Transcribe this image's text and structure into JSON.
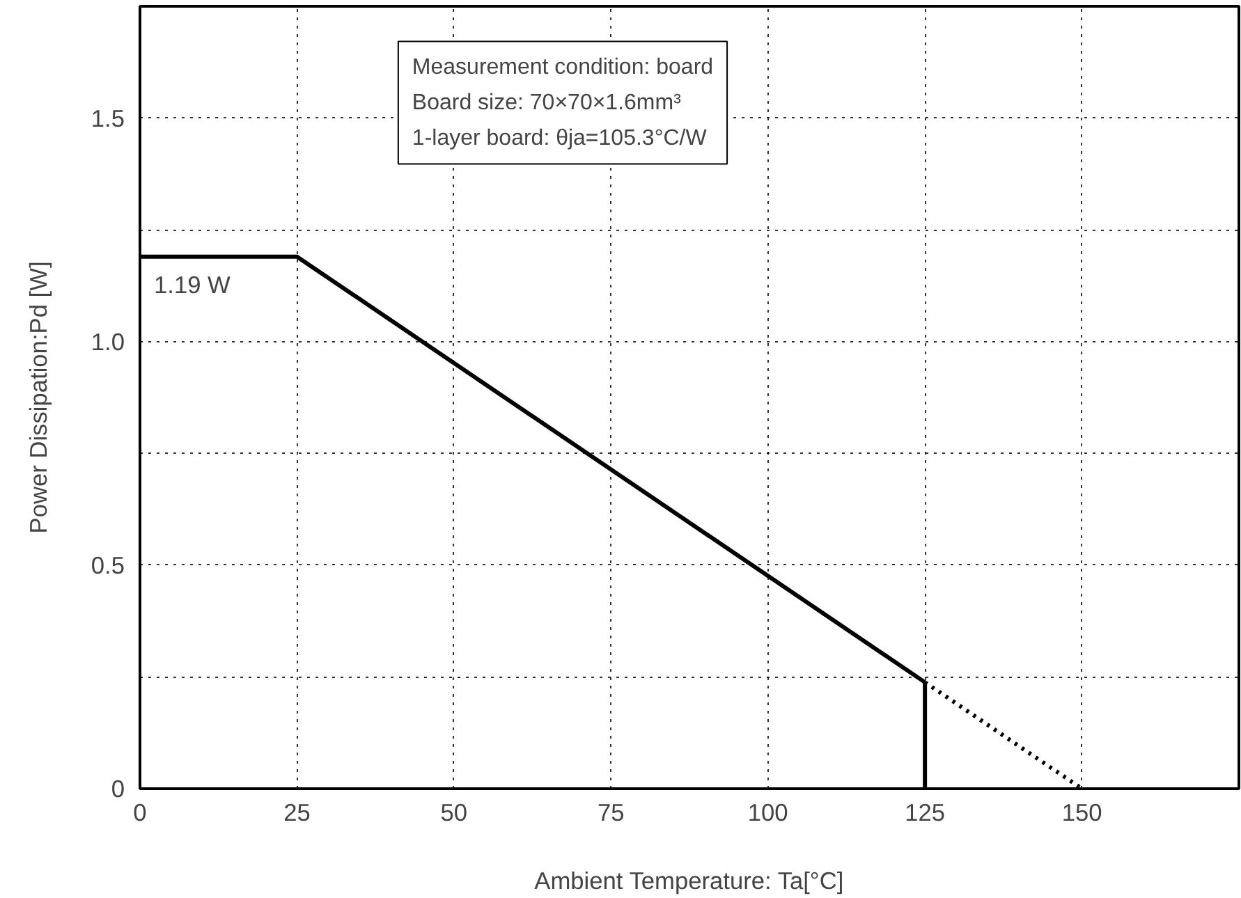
{
  "chart_data": {
    "type": "line",
    "xlabel": "Ambient Temperature: Ta[°C]",
    "ylabel": "Power Dissipation:Pd [W]",
    "xlim": [
      0,
      175
    ],
    "ylim": [
      0,
      1.75
    ],
    "xticks": [
      0,
      25,
      50,
      75,
      100,
      125,
      150,
      {
        "value": 175,
        "label": null
      }
    ],
    "yticks": [
      0,
      {
        "value": 0.25,
        "label": null
      },
      0.5,
      {
        "value": 0.75,
        "label": null
      },
      {
        "value": 1.0,
        "label": "1.0"
      },
      {
        "value": 1.25,
        "label": null
      },
      1.5,
      {
        "value": 1.75,
        "label": null
      }
    ],
    "grid": true,
    "line_style": "solid",
    "marker": "none",
    "series": [
      {
        "color": "#000000",
        "x": [
          0,
          25,
          125
        ],
        "values": [
          1.19,
          1.19,
          0.238
        ]
      },
      {
        "color": "#000000",
        "x": [
          125,
          125
        ],
        "values": [
          0.238,
          0
        ]
      },
      {
        "color": "#000000",
        "x": [
          125,
          150
        ],
        "values": [
          0.238,
          0
        ],
        "line_style": "dotted"
      }
    ],
    "annotations": [
      {
        "text": "1.19 W",
        "x": 0,
        "y": 1.19
      },
      "Measurement condition: board",
      "Board size: 70×70×1.6mm³",
      "1-layer board: θja=105.3°C/W"
    ]
  }
}
